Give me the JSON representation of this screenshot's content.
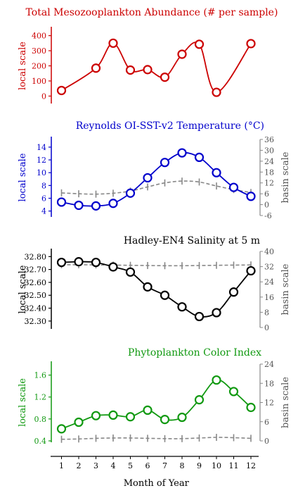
{
  "figure": {
    "xlabel": "Month of Year",
    "months": [
      1,
      2,
      3,
      4,
      5,
      6,
      7,
      8,
      9,
      10,
      11,
      12
    ]
  },
  "chart_data": [
    {
      "type": "line",
      "title": "Total Mesozooplankton Abundance (# per sample)",
      "color": "#cc0000",
      "ylabel": "local scale",
      "ylim": [
        -40,
        440
      ],
      "yticks": [
        0,
        100,
        200,
        300,
        400
      ],
      "series": [
        {
          "x": [
            1,
            3,
            4,
            5,
            6,
            7,
            8,
            9,
            10,
            12
          ],
          "values": [
            37,
            185,
            350,
            172,
            175,
            125,
            277,
            343,
            25,
            347
          ]
        }
      ]
    },
    {
      "type": "line",
      "title": "Reynolds OI-SST-v2 Temperature (°C)",
      "color": "#0000cc",
      "ylabel": "local scale",
      "ylim": [
        3.3,
        15.2
      ],
      "yticks": [
        4,
        6,
        8,
        10,
        12,
        14
      ],
      "y2label": "basin scale",
      "y2lim": [
        -6,
        36
      ],
      "y2ticks": [
        -6,
        0,
        6,
        12,
        18,
        24,
        30,
        36
      ],
      "series": [
        {
          "x": [
            1,
            2,
            3,
            4,
            5,
            6,
            7,
            8,
            9,
            10,
            11,
            12
          ],
          "values": [
            5.4,
            4.9,
            4.8,
            5.2,
            6.8,
            9.2,
            11.6,
            13.1,
            12.4,
            10.0,
            7.7,
            6.3
          ]
        },
        {
          "x": [
            1,
            2,
            3,
            4,
            5,
            6,
            7,
            8,
            9,
            10,
            11,
            12
          ],
          "values": [
            6.5,
            6.0,
            5.8,
            6.3,
            7.5,
            9.8,
            12.0,
            13.0,
            12.5,
            10.3,
            8.3,
            6.7
          ],
          "axis": "basin",
          "style": "dashed",
          "color": "#888888"
        }
      ]
    },
    {
      "type": "line",
      "title": "Hadley-EN4 Salinity at 5 m",
      "color": "#000000",
      "ylabel": "local scale",
      "ylim": [
        32.25,
        32.84
      ],
      "yticks": [
        32.3,
        32.4,
        32.5,
        32.6,
        32.7,
        32.8
      ],
      "ytick_labels": [
        "32.30",
        "32.40",
        "32.50",
        "32.60",
        "32.70",
        "32.80"
      ],
      "y2label": "basin scale",
      "y2lim": [
        0,
        40
      ],
      "y2ticks": [
        0,
        8,
        16,
        24,
        32,
        40
      ],
      "series": [
        {
          "x": [
            1,
            2,
            3,
            4,
            5,
            6,
            7,
            8,
            9,
            10,
            11,
            12
          ],
          "values": [
            32.755,
            32.76,
            32.755,
            32.72,
            32.68,
            32.565,
            32.5,
            32.41,
            32.335,
            32.365,
            32.525,
            32.69
          ]
        },
        {
          "x": [
            1,
            2,
            3,
            4,
            5,
            6,
            7,
            8,
            9,
            10,
            11,
            12
          ],
          "values": [
            33.0,
            33.0,
            32.9,
            32.8,
            32.7,
            32.6,
            32.5,
            32.5,
            32.6,
            32.7,
            32.8,
            32.9
          ],
          "axis": "basin",
          "style": "dashed",
          "color": "#888888"
        }
      ]
    },
    {
      "type": "line",
      "title": "Phytoplankton Color Index",
      "color": "#119911",
      "ylabel": "local scale",
      "ylim": [
        0.4,
        1.8
      ],
      "yticks": [
        0.4,
        0.8,
        1.2,
        1.6
      ],
      "y2label": "basin scale",
      "y2lim": [
        0,
        24
      ],
      "y2ticks": [
        0,
        6,
        12,
        18,
        24
      ],
      "series": [
        {
          "x": [
            1,
            2,
            3,
            4,
            5,
            6,
            7,
            8,
            9,
            10,
            11,
            12
          ],
          "values": [
            0.62,
            0.74,
            0.86,
            0.87,
            0.84,
            0.96,
            0.79,
            0.83,
            1.15,
            1.51,
            1.3,
            1.01
          ]
        },
        {
          "x": [
            1,
            2,
            3,
            4,
            5,
            6,
            7,
            8,
            9,
            10,
            11,
            12
          ],
          "values": [
            0.5,
            0.6,
            0.8,
            0.9,
            0.9,
            0.8,
            0.7,
            0.7,
            0.9,
            1.1,
            1.0,
            0.8
          ],
          "axis": "basin",
          "style": "dashed",
          "color": "#888888"
        }
      ]
    }
  ]
}
